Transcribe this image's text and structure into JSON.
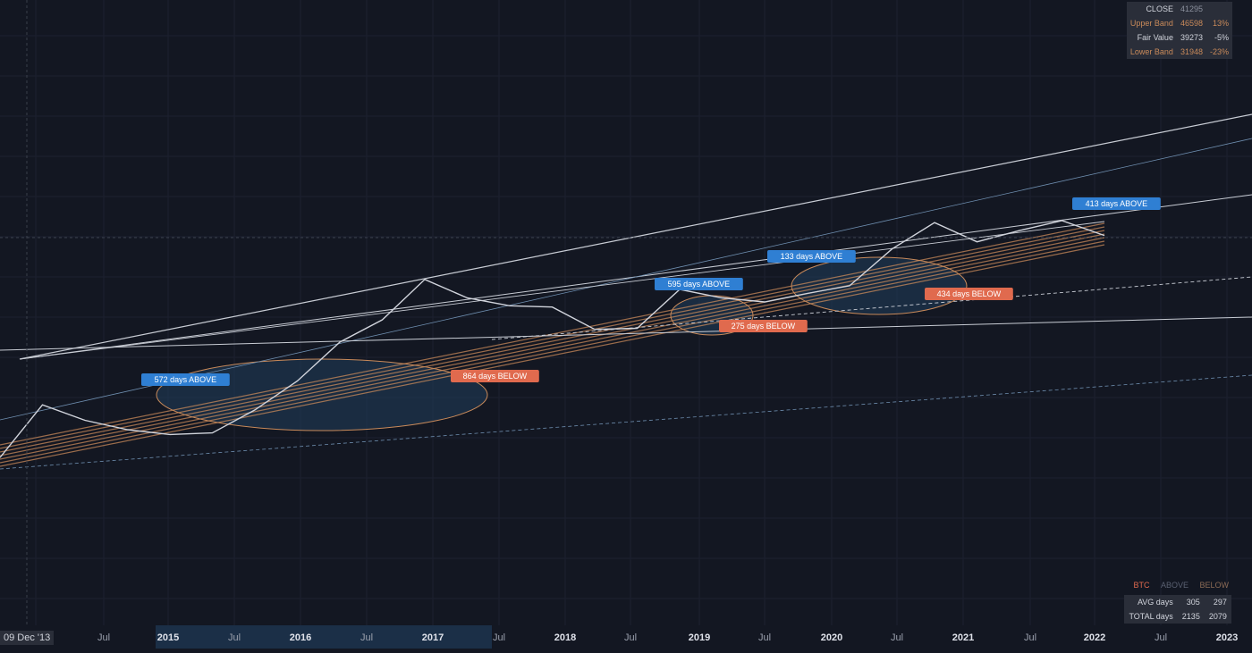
{
  "stats_box": {
    "rows": [
      {
        "label": "CLOSE",
        "value": "41295",
        "pct": ""
      },
      {
        "label": "Upper Band",
        "value": "46598",
        "pct": "13%"
      },
      {
        "label": "Fair Value",
        "value": "39273",
        "pct": "-5%"
      },
      {
        "label": "Lower Band",
        "value": "31948",
        "pct": "-23%"
      }
    ]
  },
  "summary": {
    "legend": {
      "asset": "BTC",
      "above": "ABOVE",
      "below": "BELOW"
    },
    "rows": [
      {
        "label": "AVG days",
        "above": "305",
        "below": "297"
      },
      {
        "label": "TOTAL days",
        "above": "2135",
        "below": "2079"
      }
    ]
  },
  "cursor_date": "09 Dec '13",
  "colors": {
    "background": "#131722",
    "above_label": "#2f7fd3",
    "below_label": "#e06a4e",
    "band": "#c98a5a",
    "ellipse_fill": "#1f3b57"
  },
  "chart_data": {
    "type": "line",
    "x_ticks": [
      "Jul",
      "2015",
      "Jul",
      "2016",
      "Jul",
      "2017",
      "Jul",
      "2018",
      "Jul",
      "2019",
      "Jul",
      "2020",
      "Jul",
      "2021",
      "Jul",
      "2022",
      "Jul",
      "2023"
    ],
    "series": [
      {
        "name": "BTC",
        "values": [
          120,
          480,
          320,
          250,
          220,
          230,
          420,
          900,
          2500,
          4500,
          13000,
          8000,
          6500,
          6300,
          3500,
          3600,
          10000,
          8000,
          7200,
          9000,
          11000,
          29000,
          58000,
          35000,
          47000,
          61000,
          41295
        ]
      }
    ],
    "annotations": [
      {
        "text": "572 days ABOVE",
        "kind": "above"
      },
      {
        "text": "864 days BELOW",
        "kind": "below"
      },
      {
        "text": "595 days ABOVE",
        "kind": "above"
      },
      {
        "text": "275 days BELOW",
        "kind": "below"
      },
      {
        "text": "133 days ABOVE",
        "kind": "above"
      },
      {
        "text": "434 days BELOW",
        "kind": "below"
      },
      {
        "text": "413 days ABOVE",
        "kind": "above"
      }
    ]
  }
}
